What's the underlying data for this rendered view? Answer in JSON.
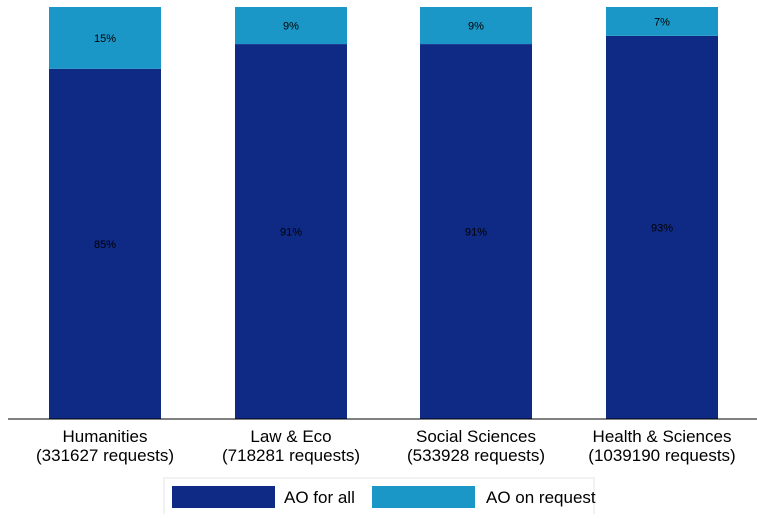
{
  "chart_data": {
    "type": "bar",
    "stacked": true,
    "percent_stacked": true,
    "categories": [
      [
        "Humanities",
        "(331627 requests)"
      ],
      [
        "Law & Eco",
        "(718281 requests)"
      ],
      [
        "Social Sciences",
        "(533928 requests)"
      ],
      [
        "Health & Sciences",
        "(1039190 requests)"
      ]
    ],
    "series": [
      {
        "name": "AO for all",
        "values": [
          85,
          91,
          91,
          93
        ],
        "labels": [
          "85%",
          "91%",
          "91%",
          "93%"
        ],
        "color": "#0f2a85"
      },
      {
        "name": "AO on request",
        "values": [
          15,
          9,
          9,
          7
        ],
        "labels": [
          "15%",
          "9%",
          "9%",
          "7%"
        ],
        "color": "#1a96c7"
      }
    ],
    "ylim": [
      0,
      100
    ],
    "grid": false,
    "legend_position": "bottom-center"
  }
}
